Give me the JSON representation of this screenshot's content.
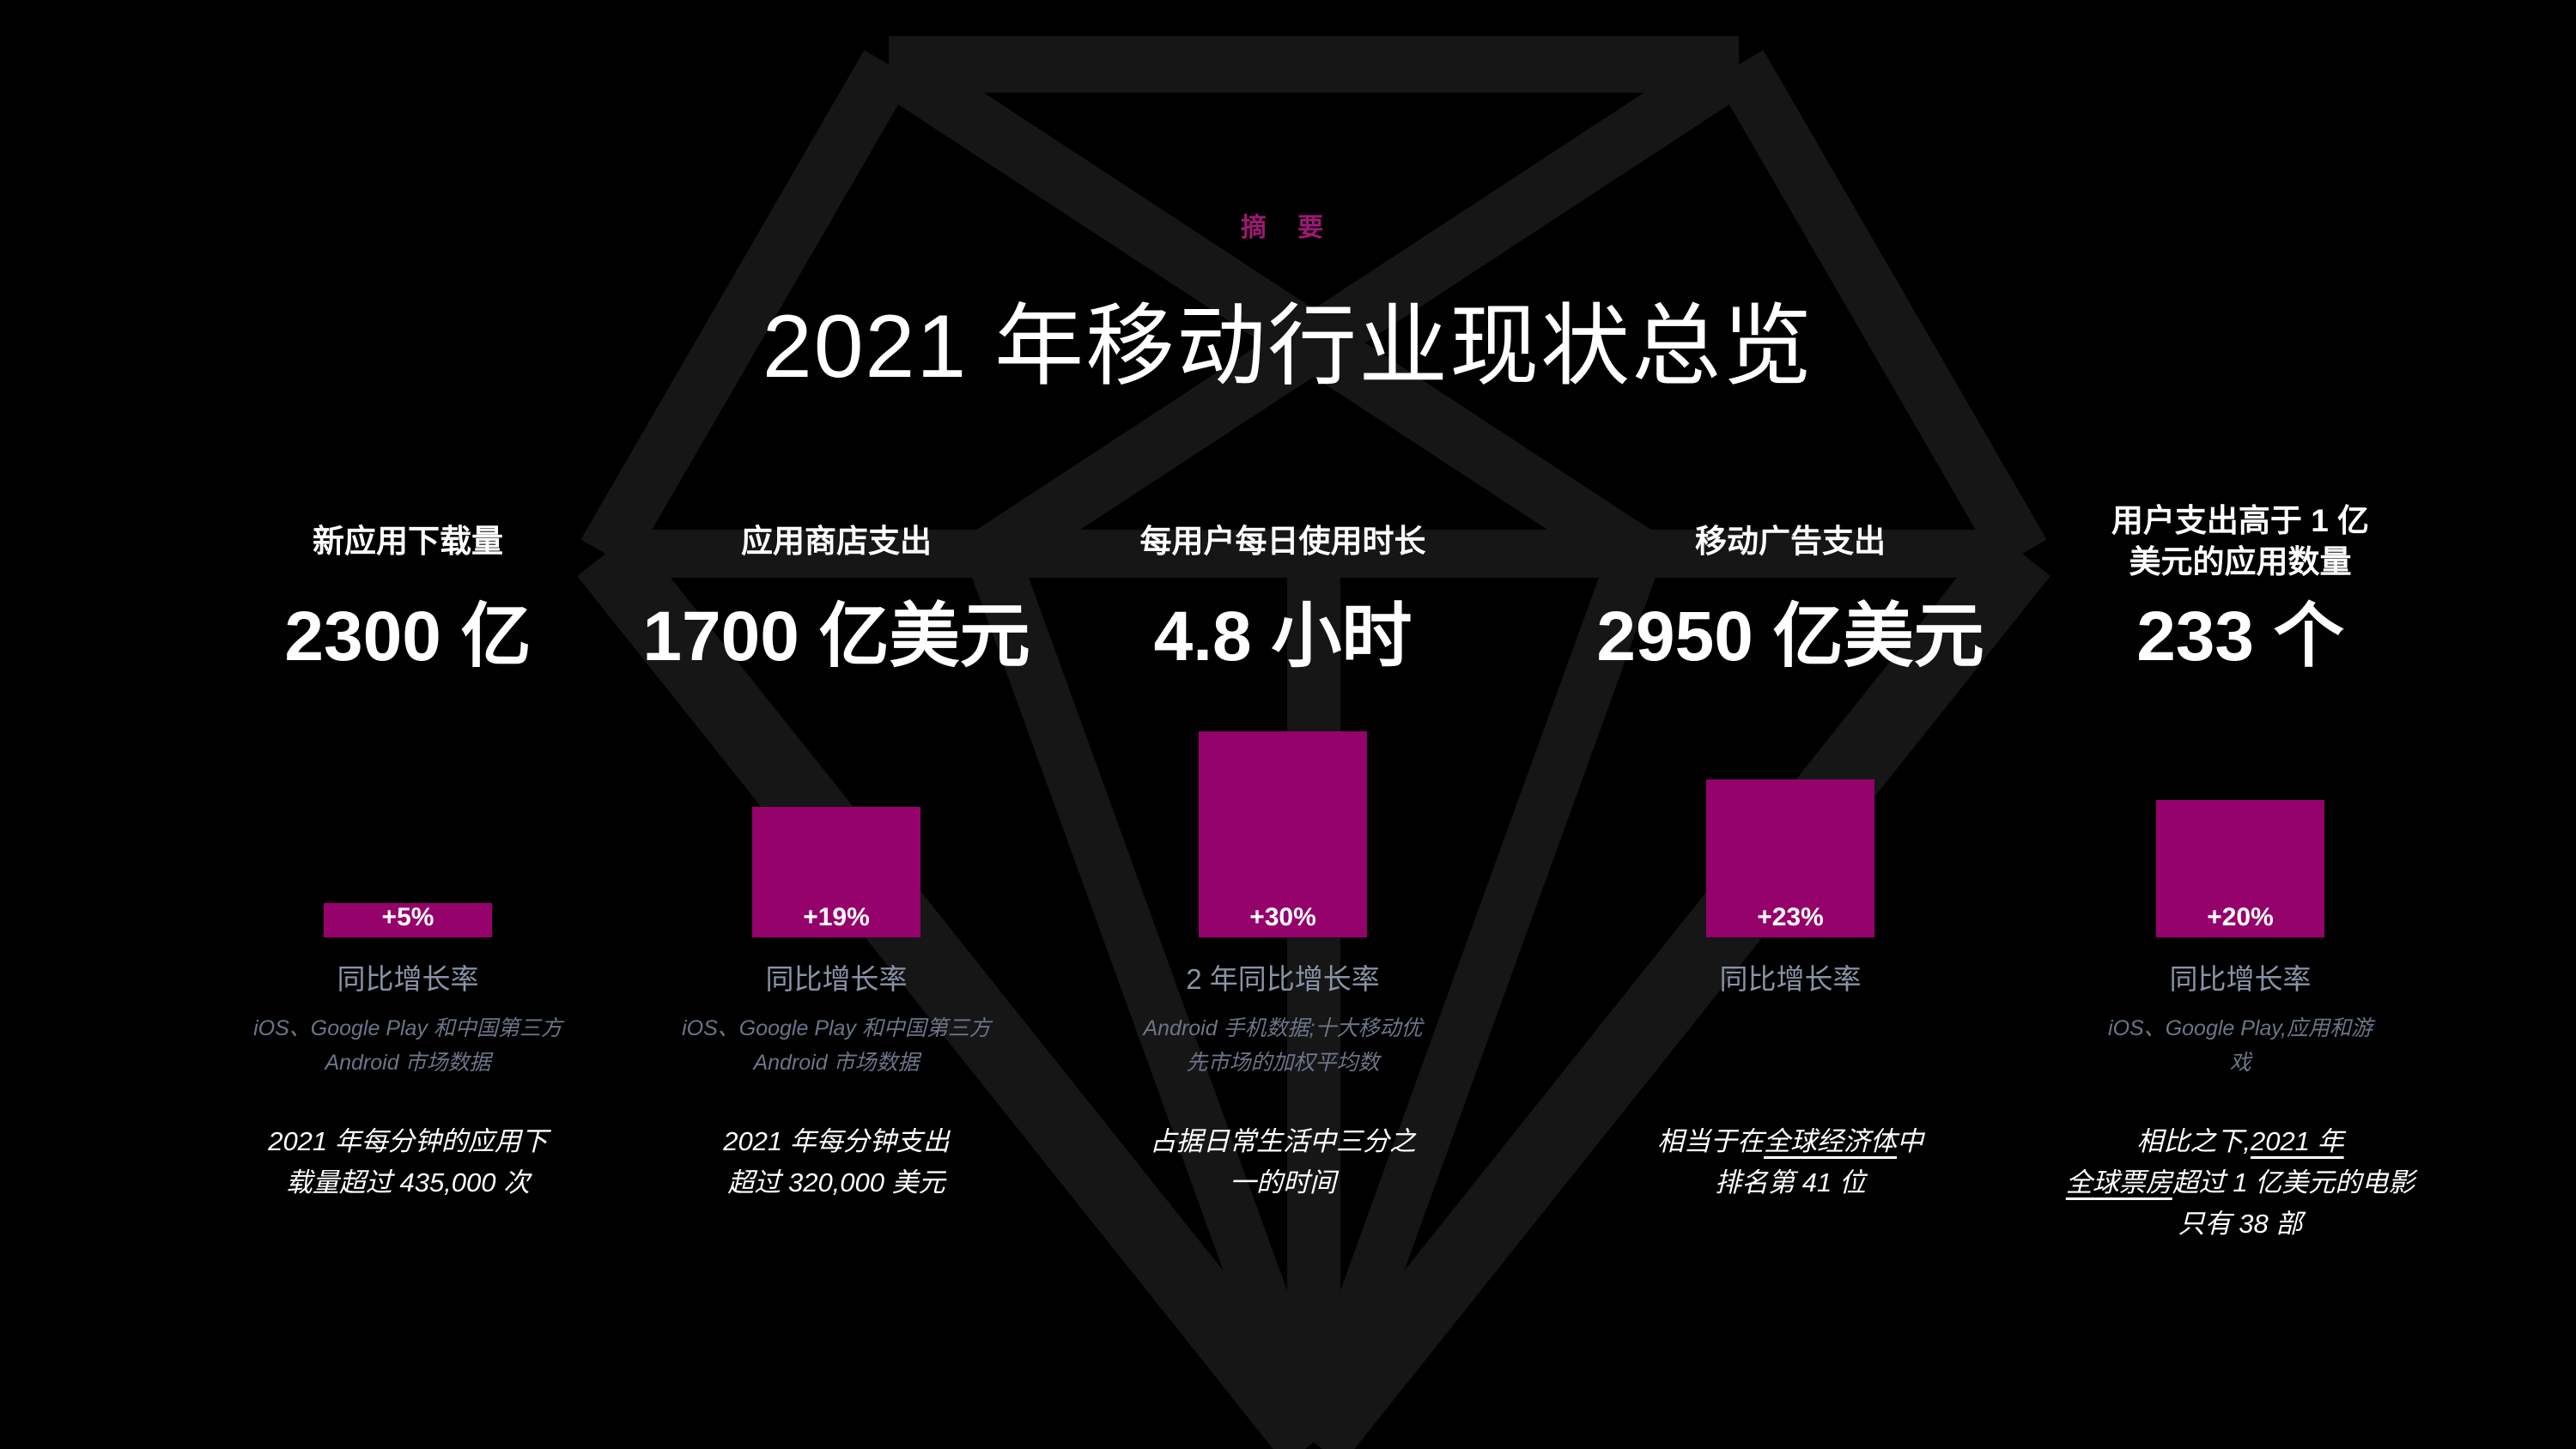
{
  "slide": {
    "eyebrow": "摘 要",
    "title": "2021 年移动行业现状总览"
  },
  "columns": [
    {
      "header": "新应用下载量",
      "value": "2300 亿",
      "bar": {
        "label": "+5%",
        "growth_pct": 5
      },
      "caption": "同比增长率",
      "source_note": "iOS、Google Play 和中国第三方\nAndroid 市场数据",
      "statement": [
        {
          "text": "2021 年每分钟的应用下\n载量超过 435,000 次",
          "underline": false
        }
      ]
    },
    {
      "header": "应用商店支出",
      "value": "1700 亿美元",
      "bar": {
        "label": "+19%",
        "growth_pct": 19
      },
      "caption": "同比增长率",
      "source_note": "iOS、Google Play 和中国第三方\nAndroid 市场数据",
      "statement": [
        {
          "text": "2021 年每分钟支出\n超过 320,000 美元",
          "underline": false
        }
      ]
    },
    {
      "header": "每用户每日使用时长",
      "value": "4.8 小时",
      "bar": {
        "label": "+30%",
        "growth_pct": 30
      },
      "caption": "2 年同比增长率",
      "source_note": "Android 手机数据;十大移动优\n先市场的加权平均数",
      "statement": [
        {
          "text": "占据日常生活中三分之\n一的时间",
          "underline": false
        }
      ]
    },
    {
      "header": "移动广告支出",
      "value": "2950 亿美元",
      "bar": {
        "label": "+23%",
        "growth_pct": 23
      },
      "caption": "同比增长率",
      "source_note": "",
      "statement": [
        {
          "text": "相当于在",
          "underline": false
        },
        {
          "text": "全球经济体",
          "underline": true
        },
        {
          "text": "中\n排名第 41 位",
          "underline": false
        }
      ]
    },
    {
      "header": "用户支出高于 1 亿\n美元的应用数量",
      "value": "233 个",
      "bar": {
        "label": "+20%",
        "growth_pct": 20
      },
      "caption": "同比增长率",
      "source_note": "iOS、Google Play,应用和游\n戏",
      "statement": [
        {
          "text": "相比之下,",
          "underline": false
        },
        {
          "text": "2021 年\n全球票房",
          "underline": true
        },
        {
          "text": "超过 1 亿美元的电影\n只有 38 部",
          "underline": false
        }
      ]
    }
  ],
  "colors": {
    "background": "#000000",
    "accent_magenta": "#95026B",
    "eyebrow_magenta": "#9B1A72",
    "caption_gray": "#8893A7",
    "note_gray": "#6A7589",
    "watermark_gray": "#161616"
  },
  "chart_data": {
    "type": "bar",
    "title": "2021 年移动行业现状总览",
    "subtitle": "摘 要",
    "categories": [
      "新应用下载量",
      "应用商店支出",
      "每用户每日使用时长",
      "移动广告支出",
      "用户支出高于 1 亿美元的应用数量"
    ],
    "headline_values": [
      "2300 亿",
      "1700 亿美元",
      "4.8 小时",
      "2950 亿美元",
      "233 个"
    ],
    "series": [
      {
        "name": "增长率 (%)",
        "values": [
          5,
          19,
          30,
          23,
          20
        ],
        "labels": [
          "+5%",
          "+19%",
          "+30%",
          "+23%",
          "+20%"
        ]
      }
    ],
    "period_notes": [
      "同比增长率",
      "同比增长率",
      "2 年同比增长率",
      "同比增长率",
      "同比增长率"
    ],
    "source_notes": [
      "iOS、Google Play 和中国第三方 Android 市场数据",
      "iOS、Google Play 和中国第三方 Android 市场数据",
      "Android 手机数据;十大移动优先市场的加权平均数",
      "",
      "iOS、Google Play,应用和游戏"
    ],
    "annotations": [
      "2021 年每分钟的应用下载量超过 435,000 次",
      "2021 年每分钟支出超过 320,000 美元",
      "占据日常生活中三分之一的时间",
      "相当于在全球经济体中排名第 41 位",
      "相比之下,2021 年全球票房超过 1 亿美元的电影只有 38 部"
    ],
    "ylim": [
      0,
      30
    ],
    "grid": false,
    "legend_position": "none",
    "bar_color": "#95026B",
    "background_color": "#000000"
  }
}
